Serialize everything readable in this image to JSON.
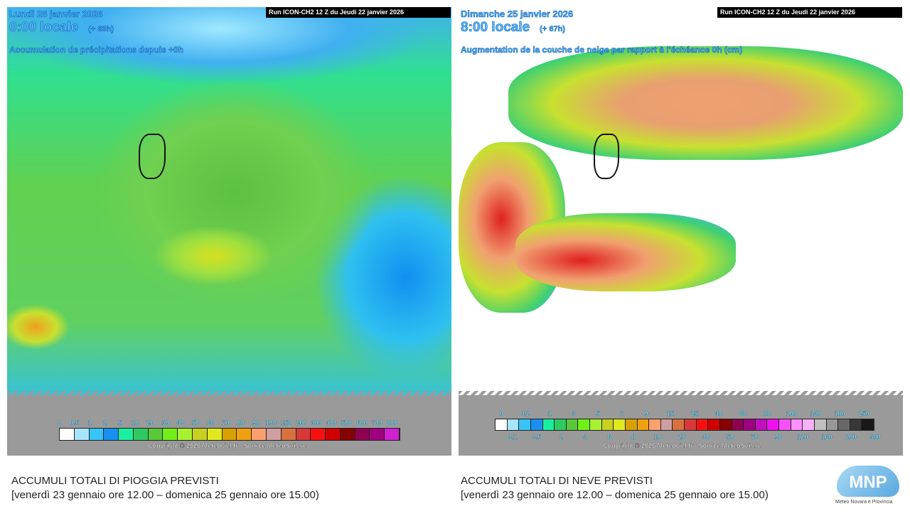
{
  "rain_map": {
    "date": "Lundi 26 janvier 2026",
    "time": "0:00 locale",
    "offset": "(+ 83h)",
    "description": "Accumulation de précipitations depuis +0h",
    "run": "Run ICON-CH2 12 Z du Jeudi 22 janvier 2026",
    "scale_labels": [
      "0",
      "0.5",
      "1",
      "2",
      "5",
      "10",
      "20",
      "30",
      "40",
      "50",
      "60",
      "70",
      "80",
      "90",
      "100",
      "150",
      "200",
      "300",
      "400",
      "500",
      "600",
      "700",
      "800"
    ],
    "scale_colors": [
      "#ffffff",
      "#a8e4fa",
      "#38c4f8",
      "#1890f0",
      "#18f0a0",
      "#30c860",
      "#58c838",
      "#70f018",
      "#a8f030",
      "#c8d020",
      "#e0e820",
      "#d8a000",
      "#f0a010",
      "#fca070",
      "#d0a0a0",
      "#d87040",
      "#d83838",
      "#f81010",
      "#d00000",
      "#880000",
      "#900050",
      "#a00080",
      "#d020d0"
    ],
    "copyright": "Copyright © 2026 Meteociel.fr - Source MeteoSuisse"
  },
  "snow_map": {
    "date": "Dimanche 25 janvier 2026",
    "time": "8:00 locale",
    "offset": "(+ 67h)",
    "description": "Augmentation de la couche de neige par rapport à l'échéance 0h (cm)",
    "run": "Run ICON-CH2 12 Z du Jeudi 22 janvier 2026",
    "scale_labels_top": [
      "0",
      "0.2",
      "1",
      "3",
      "5",
      "7",
      "9",
      "15",
      "25",
      "40",
      "60",
      "80",
      "100",
      "140",
      "180",
      "250"
    ],
    "scale_labels_bottom": [
      "0.1",
      "0.5",
      "2",
      "4",
      "6",
      "8",
      "10",
      "20",
      "30",
      "50",
      "70",
      "90",
      "120",
      "160",
      "200",
      "300"
    ],
    "scale_colors": [
      "#ffffff",
      "#a8e4fa",
      "#38c4f8",
      "#1890f0",
      "#18f0a0",
      "#30c860",
      "#58c838",
      "#70f018",
      "#a8f030",
      "#c8d020",
      "#e0e820",
      "#d8a000",
      "#f0a010",
      "#fca070",
      "#d0a0a0",
      "#d87040",
      "#d83838",
      "#f81010",
      "#d00000",
      "#880000",
      "#900050",
      "#a00080",
      "#c010c0",
      "#f010f0",
      "#f850f8",
      "#fc90fc",
      "#f8b0f8",
      "#c0c0c0",
      "#989898",
      "#686868",
      "#383838",
      "#181818"
    ],
    "copyright": "Copyright © 2026 Meteociel.fr - Source MeteoSuisse"
  },
  "captions": {
    "rain_title": "ACCUMULI TOTALI DI PIOGGIA PREVISTI",
    "rain_period": "[venerdì 23 gennaio ore 12.00 – domenica 25 gennaio ore 15.00)",
    "snow_title": "ACCUMULI TOTALI DI NEVE PREVISTI",
    "snow_period": "[venerdì 23 gennaio ore 12.00 – domenica 25 gennaio ore 15.00)"
  },
  "logo": {
    "text": "MNP",
    "subtitle": "Meteo Novara e Provincia"
  }
}
